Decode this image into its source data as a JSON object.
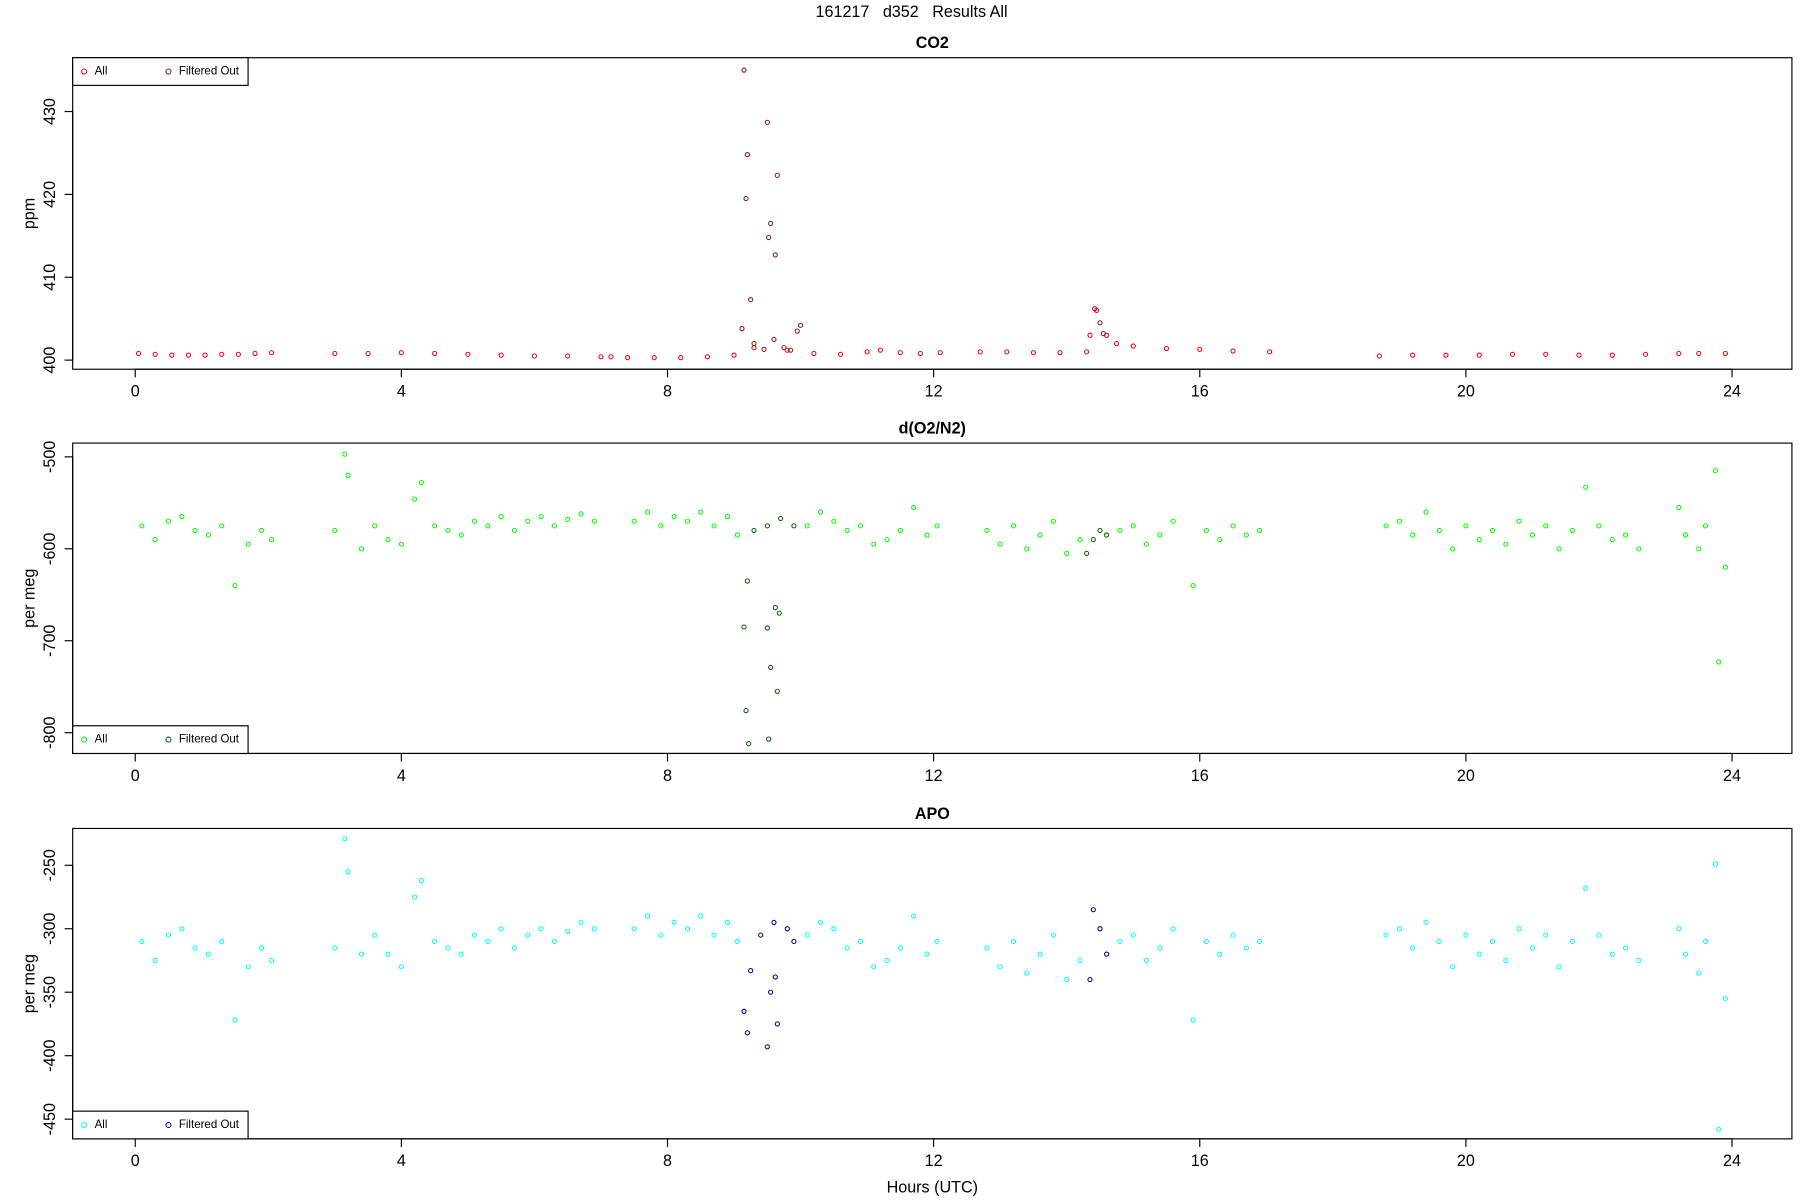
{
  "header": {
    "title": "161217   d352   Results All"
  },
  "chart_data": [
    {
      "type": "scatter",
      "title": "CO2",
      "ylabel": "ppm",
      "legend": "top-left",
      "xlim": [
        -0.94,
        24.9
      ],
      "xticks": [
        0,
        4,
        8,
        12,
        16,
        20,
        24
      ],
      "ylim": [
        398.9,
        436.5
      ],
      "yticks": [
        400,
        410,
        420,
        430
      ],
      "series": [
        {
          "name": "All",
          "color": "#ff0000",
          "x": [
            0.05,
            0.3,
            0.55,
            0.8,
            1.05,
            1.3,
            1.55,
            1.8,
            2.05,
            3.0,
            3.5,
            4.0,
            4.5,
            5.0,
            5.5,
            6.0,
            6.5,
            7.0,
            7.15,
            7.4,
            7.8,
            8.2,
            8.6,
            9.0,
            9.3,
            9.8,
            10.2,
            10.6,
            11.0,
            11.2,
            11.5,
            11.8,
            12.1,
            12.7,
            13.1,
            13.5,
            13.9,
            14.3,
            14.35,
            14.45,
            14.6,
            14.75,
            15.0,
            15.5,
            16.0,
            16.5,
            17.05,
            18.7,
            19.2,
            19.7,
            20.2,
            20.7,
            21.2,
            21.7,
            22.2,
            22.7,
            23.2,
            23.5,
            23.9
          ],
          "values": [
            400.8,
            400.7,
            400.6,
            400.6,
            400.6,
            400.7,
            400.7,
            400.8,
            400.9,
            400.8,
            400.8,
            400.9,
            400.8,
            400.7,
            400.6,
            400.5,
            400.5,
            400.4,
            400.4,
            400.3,
            400.3,
            400.3,
            400.4,
            400.6,
            401.5,
            401.2,
            400.8,
            400.7,
            401.0,
            401.2,
            400.9,
            400.8,
            400.9,
            401.0,
            401.0,
            400.9,
            400.9,
            401.0,
            403.0,
            406.0,
            403.0,
            402.0,
            401.7,
            401.4,
            401.3,
            401.1,
            401.0,
            400.5,
            400.6,
            400.6,
            400.6,
            400.7,
            400.7,
            400.6,
            400.6,
            400.7,
            400.8,
            400.8,
            400.8
          ]
        },
        {
          "name": "Filtered Out",
          "color": "#8b1a1a",
          "x": [
            9.15,
            9.2,
            9.18,
            9.25,
            9.12,
            9.5,
            9.55,
            9.52,
            9.65,
            9.62,
            9.3,
            9.45,
            9.6,
            9.75,
            9.85,
            9.95,
            10.0,
            14.42,
            14.5,
            14.55
          ],
          "values": [
            435,
            424.8,
            419.5,
            407.3,
            403.8,
            428.7,
            416.5,
            414.8,
            422.3,
            412.7,
            402,
            401.3,
            402.5,
            401.5,
            401.2,
            403.5,
            404.2,
            406.2,
            404.5,
            403.2
          ]
        }
      ]
    },
    {
      "type": "scatter",
      "title": "d(O2/N2)",
      "ylabel": "per meg",
      "legend": "bottom-left",
      "xlim": [
        -0.94,
        24.9
      ],
      "xticks": [
        0,
        4,
        8,
        12,
        16,
        20,
        24
      ],
      "ylim": [
        -822.6,
        -485
      ],
      "yticks": [
        -500,
        -600,
        -700,
        -800
      ],
      "series": [
        {
          "name": "All",
          "color": "#00ff00",
          "x": [
            0.1,
            0.3,
            0.5,
            0.7,
            0.9,
            1.1,
            1.3,
            1.5,
            1.7,
            1.9,
            2.05,
            3.0,
            3.15,
            3.2,
            3.4,
            3.6,
            3.8,
            4.0,
            4.2,
            4.3,
            4.5,
            4.7,
            4.9,
            5.1,
            5.3,
            5.5,
            5.7,
            5.9,
            6.1,
            6.3,
            6.5,
            6.7,
            6.9,
            7.5,
            7.7,
            7.9,
            8.1,
            8.3,
            8.5,
            8.7,
            8.9,
            9.05,
            10.1,
            10.3,
            10.5,
            10.7,
            10.9,
            11.1,
            11.3,
            11.5,
            11.7,
            11.9,
            12.05,
            12.8,
            13.0,
            13.2,
            13.4,
            13.6,
            13.8,
            14.0,
            14.2,
            14.8,
            15.0,
            15.2,
            15.4,
            15.6,
            15.9,
            16.1,
            16.3,
            16.5,
            16.7,
            16.9,
            18.8,
            19.0,
            19.2,
            19.4,
            19.6,
            19.8,
            20.0,
            20.2,
            20.4,
            20.6,
            20.8,
            21.0,
            21.2,
            21.4,
            21.6,
            21.8,
            22.0,
            22.2,
            22.4,
            22.6,
            23.2,
            23.3,
            23.5,
            23.6,
            23.75,
            23.8,
            23.9
          ],
          "values": [
            -575,
            -590,
            -570,
            -565,
            -580,
            -585,
            -575,
            -640,
            -595,
            -580,
            -590,
            -580,
            -497,
            -520,
            -600,
            -575,
            -590,
            -595,
            -546,
            -528,
            -575,
            -580,
            -585,
            -570,
            -575,
            -565,
            -580,
            -570,
            -565,
            -575,
            -568,
            -562,
            -570,
            -570,
            -560,
            -575,
            -565,
            -570,
            -560,
            -575,
            -565,
            -585,
            -575,
            -560,
            -570,
            -580,
            -575,
            -595,
            -590,
            -580,
            -555,
            -585,
            -575,
            -580,
            -595,
            -575,
            -600,
            -585,
            -570,
            -605,
            -590,
            -580,
            -575,
            -595,
            -585,
            -570,
            -640,
            -580,
            -590,
            -575,
            -585,
            -580,
            -575,
            -570,
            -585,
            -560,
            -580,
            -600,
            -575,
            -590,
            -580,
            -595,
            -570,
            -585,
            -575,
            -600,
            -580,
            -533,
            -575,
            -590,
            -585,
            -600,
            -555,
            -585,
            -600,
            -575,
            -515,
            -723,
            -620
          ]
        },
        {
          "name": "Filtered Out",
          "color": "#006400",
          "x": [
            9.15,
            9.2,
            9.18,
            9.22,
            9.5,
            9.55,
            9.52,
            9.65,
            9.62,
            9.68,
            9.3,
            9.5,
            9.7,
            9.9,
            14.4,
            14.5,
            14.6,
            14.3
          ],
          "values": [
            -685,
            -635,
            -776,
            -812,
            -686,
            -729,
            -807,
            -755,
            -664,
            -670,
            -580,
            -575,
            -567,
            -575,
            -590,
            -580,
            -585,
            -605
          ]
        }
      ]
    },
    {
      "type": "scatter",
      "title": "APO",
      "ylabel": "per meg",
      "xlabel": "Hours (UTC)",
      "legend": "bottom-left",
      "xlim": [
        -0.94,
        24.9
      ],
      "xticks": [
        0,
        4,
        8,
        12,
        16,
        20,
        24
      ],
      "ylim": [
        -465.5,
        -221
      ],
      "yticks": [
        -250,
        -300,
        -350,
        -400,
        -450
      ],
      "series": [
        {
          "name": "All",
          "color": "#00ffff",
          "x": [
            0.1,
            0.3,
            0.5,
            0.7,
            0.9,
            1.1,
            1.3,
            1.5,
            1.7,
            1.9,
            2.05,
            3.0,
            3.15,
            3.2,
            3.4,
            3.6,
            3.8,
            4.0,
            4.2,
            4.3,
            4.5,
            4.7,
            4.9,
            5.1,
            5.3,
            5.5,
            5.7,
            5.9,
            6.1,
            6.3,
            6.5,
            6.7,
            6.9,
            7.5,
            7.7,
            7.9,
            8.1,
            8.3,
            8.5,
            8.7,
            8.9,
            9.05,
            10.1,
            10.3,
            10.5,
            10.7,
            10.9,
            11.1,
            11.3,
            11.5,
            11.7,
            11.9,
            12.05,
            12.8,
            13.0,
            13.2,
            13.4,
            13.6,
            13.8,
            14.0,
            14.2,
            14.8,
            15.0,
            15.2,
            15.4,
            15.6,
            15.9,
            16.1,
            16.3,
            16.5,
            16.7,
            16.9,
            18.8,
            19.0,
            19.2,
            19.4,
            19.6,
            19.8,
            20.0,
            20.2,
            20.4,
            20.6,
            20.8,
            21.0,
            21.2,
            21.4,
            21.6,
            21.8,
            22.0,
            22.2,
            22.4,
            22.6,
            23.2,
            23.3,
            23.5,
            23.6,
            23.75,
            23.8,
            23.9
          ],
          "values": [
            -310,
            -325,
            -305,
            -300,
            -315,
            -320,
            -310,
            -372,
            -330,
            -315,
            -325,
            -315,
            -229,
            -255,
            -320,
            -305,
            -320,
            -330,
            -275,
            -262,
            -310,
            -315,
            -320,
            -305,
            -310,
            -300,
            -315,
            -305,
            -300,
            -310,
            -302,
            -295,
            -300,
            -300,
            -290,
            -305,
            -295,
            -300,
            -290,
            -305,
            -295,
            -310,
            -305,
            -295,
            -300,
            -315,
            -310,
            -330,
            -325,
            -315,
            -290,
            -320,
            -310,
            -315,
            -330,
            -310,
            -335,
            -320,
            -305,
            -340,
            -325,
            -310,
            -305,
            -325,
            -315,
            -300,
            -372,
            -310,
            -320,
            -305,
            -315,
            -310,
            -305,
            -300,
            -315,
            -295,
            -310,
            -330,
            -305,
            -320,
            -310,
            -325,
            -300,
            -315,
            -305,
            -330,
            -310,
            -268,
            -305,
            -320,
            -315,
            -325,
            -300,
            -320,
            -335,
            -310,
            -249,
            -458,
            -355
          ]
        },
        {
          "name": "Filtered Out",
          "color": "#00008b",
          "x": [
            9.15,
            9.2,
            9.25,
            9.5,
            9.55,
            9.65,
            9.62,
            9.4,
            9.6,
            9.8,
            9.9,
            14.4,
            14.5,
            14.35,
            14.6
          ],
          "values": [
            -365,
            -382,
            -333,
            -393,
            -350,
            -375,
            -338,
            -305,
            -295,
            -300,
            -310,
            -285,
            -300,
            -340,
            -320
          ]
        }
      ]
    }
  ]
}
